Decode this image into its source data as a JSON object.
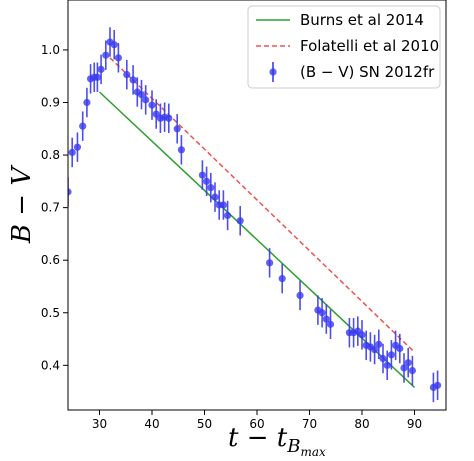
{
  "chart_data": {
    "type": "scatter",
    "title": "",
    "xlabel_main": "t − t",
    "xlabel_sub": "B",
    "xlabel_subsub": "max",
    "ylabel": "B − V",
    "xlim": [
      24,
      96
    ],
    "ylim": [
      0.315,
      1.095
    ],
    "xticks": [
      30,
      40,
      50,
      60,
      70,
      80,
      90
    ],
    "yticks": [
      0.4,
      0.5,
      0.6,
      0.7,
      0.8,
      0.9,
      1.0
    ],
    "xtick_labels": [
      "30",
      "40",
      "50",
      "60",
      "70",
      "80",
      "90"
    ],
    "ytick_labels": [
      "0.4",
      "0.5",
      "0.6",
      "0.7",
      "0.8",
      "0.9",
      "1.0"
    ],
    "grid": false,
    "legend_position": "top-right",
    "legend": [
      {
        "label": "Burns et al 2014",
        "style": "line",
        "color": "#2ca02c"
      },
      {
        "label": "Folatelli et al 2010",
        "style": "dashed",
        "color": "#ef5350"
      },
      {
        "label": "(B − V)  SN 2012fr",
        "style": "errorbar",
        "color": "#3a3af0"
      }
    ],
    "series": [
      {
        "name": "Burns et al 2014",
        "kind": "line",
        "color": "#2ca02c",
        "x": [
          30,
          90
        ],
        "y": [
          0.92,
          0.358
        ]
      },
      {
        "name": "Folatelli et al 2010",
        "kind": "dashed",
        "color": "#ef5350",
        "x": [
          32,
          90
        ],
        "y": [
          0.985,
          0.425
        ]
      },
      {
        "name": "(B − V)  SN 2012fr",
        "kind": "errorbar",
        "color": "#3a3af0",
        "x": [
          24.0,
          24.8,
          25.8,
          26.8,
          27.6,
          28.3,
          29.0,
          29.6,
          30.3,
          31.2,
          32.0,
          32.8,
          33.6,
          35.2,
          36.4,
          37.2,
          38.0,
          38.8,
          40.0,
          40.8,
          41.6,
          42.4,
          43.2,
          44.8,
          45.6,
          49.6,
          50.4,
          51.2,
          52.0,
          52.8,
          53.6,
          54.4,
          56.8,
          62.4,
          64.8,
          68.2,
          71.6,
          72.4,
          73.2,
          74.0,
          77.6,
          78.4,
          79.2,
          80.0,
          80.8,
          81.6,
          82.4,
          83.2,
          84.0,
          84.8,
          85.6,
          86.4,
          87.2,
          88.0,
          88.8,
          89.6,
          93.6,
          94.4
        ],
        "y": [
          0.73,
          0.805,
          0.815,
          0.855,
          0.9,
          0.945,
          0.948,
          0.948,
          0.963,
          0.99,
          1.015,
          1.01,
          0.985,
          0.953,
          0.943,
          0.92,
          0.915,
          0.905,
          0.895,
          0.878,
          0.87,
          0.872,
          0.87,
          0.85,
          0.81,
          0.762,
          0.75,
          0.738,
          0.72,
          0.705,
          0.705,
          0.685,
          0.675,
          0.595,
          0.565,
          0.533,
          0.505,
          0.5,
          0.488,
          0.478,
          0.462,
          0.462,
          0.465,
          0.458,
          0.438,
          0.435,
          0.43,
          0.44,
          0.413,
          0.4,
          0.42,
          0.438,
          0.432,
          0.395,
          0.405,
          0.39,
          0.358,
          0.362
        ],
        "yerr": 0.028
      }
    ]
  }
}
